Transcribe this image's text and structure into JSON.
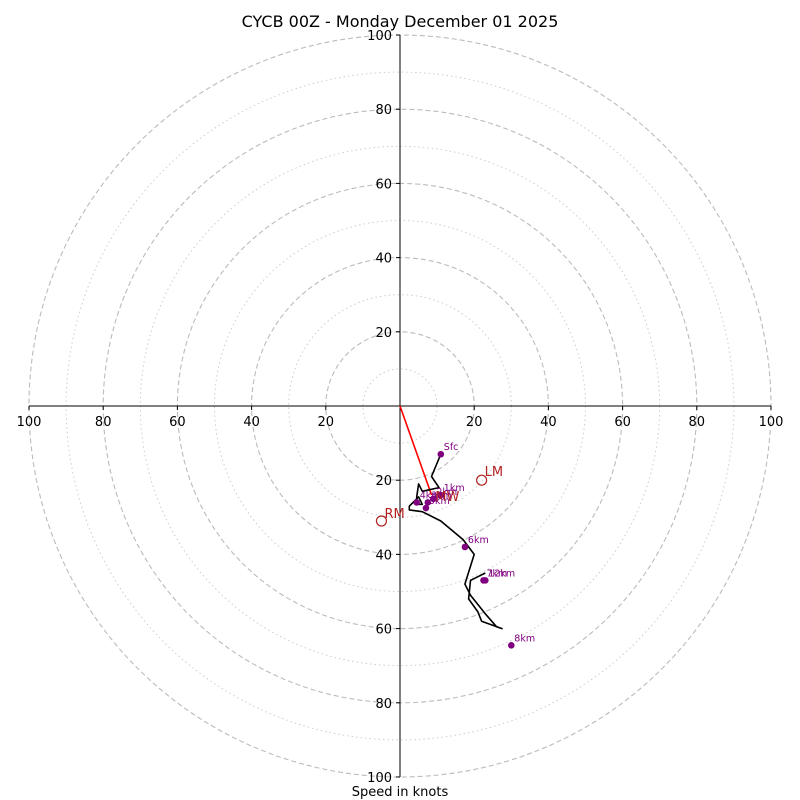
{
  "chart_data": {
    "type": "hodograph",
    "title": "CYCB 00Z - Monday December 01 2025",
    "xlabel": "Speed in knots",
    "units": "knots",
    "range": [
      -100,
      100
    ],
    "ring_labels": {
      "top": [
        "20",
        "40",
        "60",
        "80",
        "100"
      ],
      "bottom": [
        "20",
        "40",
        "60",
        "80",
        "100"
      ],
      "left": [
        "20",
        "40",
        "60",
        "80",
        "100"
      ],
      "right": [
        "20",
        "40",
        "60",
        "80",
        "100"
      ]
    },
    "rings_major": [
      20,
      40,
      60,
      80,
      100
    ],
    "rings_minor": [
      10,
      30,
      50,
      70,
      90
    ],
    "hodograph_u": [
      11,
      8.5,
      10.5,
      6,
      5,
      4.8,
      4.5,
      4.5,
      6,
      5,
      2.5,
      2.5,
      6,
      11,
      17,
      20,
      17.5,
      19,
      23,
      26,
      27.5,
      22,
      21,
      18.5,
      19,
      21,
      23
    ],
    "hodograph_v": [
      -13,
      -19,
      -22,
      -23,
      -21,
      -22.5,
      -24.5,
      -26.5,
      -26.5,
      -24.5,
      -27,
      -28,
      -28.5,
      -31,
      -36,
      -40,
      -48,
      -51,
      -56,
      -59.5,
      -60,
      -58,
      -55.5,
      -52,
      -47,
      -46,
      -45
    ],
    "height_markers": [
      {
        "label": "Sfc",
        "u": 11,
        "v": -13
      },
      {
        "label": "1km",
        "u": 11,
        "v": -24
      },
      {
        "label": "2km",
        "u": 9,
        "v": -25
      },
      {
        "label": "3km",
        "u": 7.5,
        "v": -26
      },
      {
        "label": "4km",
        "u": 4.5,
        "v": -26
      },
      {
        "label": "5km",
        "u": 7,
        "v": -27.5
      },
      {
        "label": "6km",
        "u": 17.5,
        "v": -38
      },
      {
        "label": "7km",
        "u": 22.5,
        "v": -47
      },
      {
        "label": "8km",
        "u": 30,
        "v": -64.5
      },
      {
        "label": "12km",
        "u": 23,
        "v": -47
      }
    ],
    "storm_motion": {
      "rm": {
        "label": "RM",
        "u": -5,
        "v": -31
      },
      "lm": {
        "label": "LM",
        "u": 22,
        "v": -20
      },
      "mw": {
        "label": "MW",
        "u": 9.5,
        "v": -24.5
      }
    },
    "shear_vector": {
      "u": [
        0,
        8.5
      ],
      "v": [
        0,
        -24
      ]
    },
    "colors": {
      "hodograph": "#000000",
      "markers": "#800080",
      "storm_motion": "#b22222",
      "shear": "#ff0000",
      "grid": "#bbbbbb",
      "axes": "#000000"
    }
  }
}
